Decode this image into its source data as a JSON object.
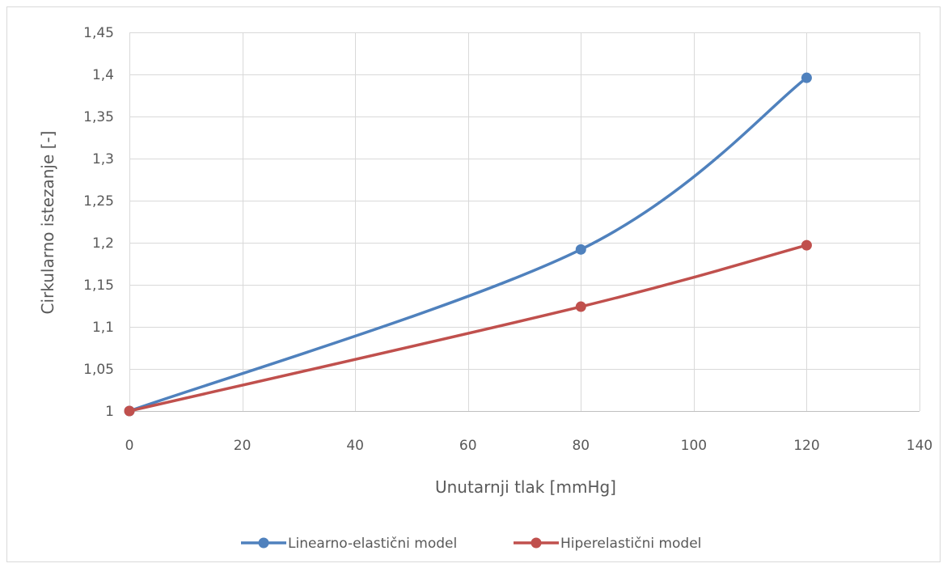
{
  "chart_data": {
    "type": "line",
    "title": "",
    "xlabel": "Unutarnji tlak [mmHg]",
    "ylabel": "Cirkularno istezanje [-]",
    "xlim": [
      0,
      140
    ],
    "ylim": [
      1,
      1.45
    ],
    "x_ticks": [
      0,
      20,
      40,
      60,
      80,
      100,
      120,
      140
    ],
    "y_ticks": [
      1,
      1.05,
      1.1,
      1.15,
      1.2,
      1.25,
      1.3,
      1.35,
      1.4,
      1.45
    ],
    "x_tick_labels": [
      "0",
      "20",
      "40",
      "60",
      "80",
      "100",
      "120",
      "140"
    ],
    "y_tick_labels": [
      "1",
      "1,05",
      "1,1",
      "1,15",
      "1,2",
      "1,25",
      "1,3",
      "1,35",
      "1,4",
      "1,45"
    ],
    "grid": true,
    "smooth": true,
    "legend_position": "bottom",
    "series": [
      {
        "name": "Linearno-elastični model",
        "color": "#4F81BD",
        "x": [
          0,
          80,
          120
        ],
        "y": [
          1.0,
          1.192,
          1.396
        ]
      },
      {
        "name": "Hiperelastični model",
        "color": "#C0504D",
        "x": [
          0,
          80,
          120
        ],
        "y": [
          1.0,
          1.124,
          1.197
        ]
      }
    ]
  },
  "colors": {
    "grid": "#D9D9D9",
    "axis": "#BFBFBF",
    "text": "#595959",
    "frame": "#D9D9D9"
  }
}
